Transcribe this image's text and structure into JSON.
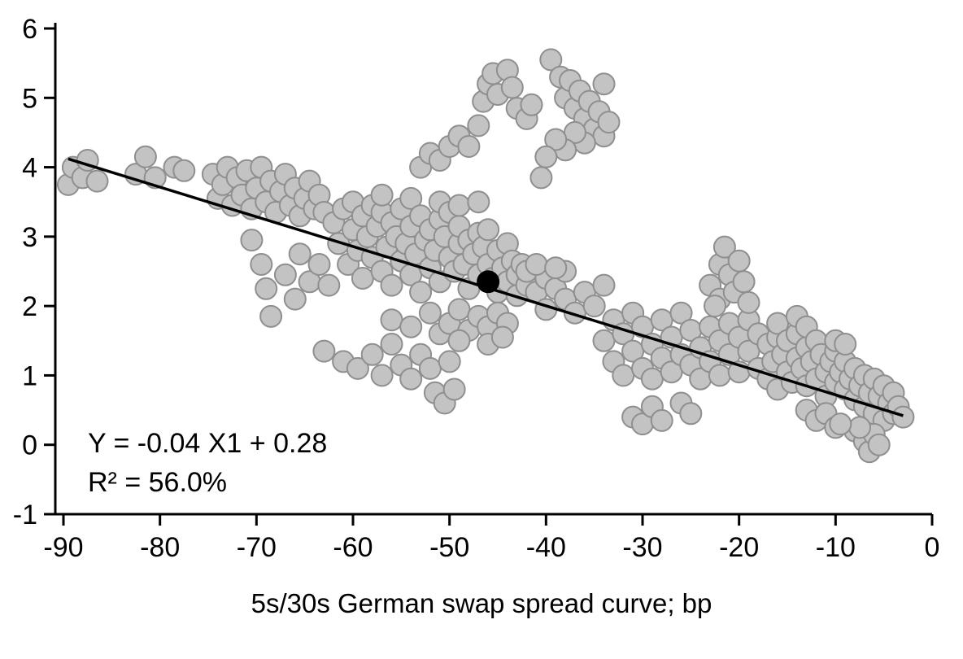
{
  "chart_data": {
    "type": "scatter",
    "title": "",
    "xlabel": "5s/30s German swap spread curve; bp",
    "ylabel": "",
    "xlim": [
      -90,
      0
    ],
    "ylim": [
      -1,
      6
    ],
    "x_ticks": [
      -90,
      -80,
      -70,
      -60,
      -50,
      -40,
      -30,
      -20,
      -10,
      0
    ],
    "y_ticks": [
      6,
      5,
      4,
      3,
      2,
      1,
      0,
      -1
    ],
    "grid": false,
    "legend": "none",
    "annotation": {
      "line1": "Y = -0.04 X1 + 0.28",
      "line2": "R² = 56.0%"
    },
    "regression": {
      "slope": -0.04,
      "intercept": 0.28,
      "r_squared_pct": 56.0,
      "x1": -89.5,
      "y1": 4.12,
      "x2": -3.0,
      "y2": 0.42,
      "color": "#000000"
    },
    "highlight_point": {
      "x": -46,
      "y": 2.35,
      "color": "#000000",
      "radius": 14
    },
    "point_style": {
      "fill": "#c3c3c3",
      "stroke": "#8f8f8f",
      "radius": 13
    },
    "points": [
      [
        -89.5,
        3.75
      ],
      [
        -89,
        4.0
      ],
      [
        -88,
        3.85
      ],
      [
        -87.5,
        4.1
      ],
      [
        -86.5,
        3.8
      ],
      [
        -82.5,
        3.9
      ],
      [
        -81.5,
        4.15
      ],
      [
        -80.5,
        3.85
      ],
      [
        -78.5,
        4.0
      ],
      [
        -77.5,
        3.95
      ],
      [
        -74.5,
        3.9
      ],
      [
        -74,
        3.55
      ],
      [
        -73.5,
        3.75
      ],
      [
        -73,
        4.0
      ],
      [
        -72.5,
        3.45
      ],
      [
        -72,
        3.85
      ],
      [
        -71.5,
        3.6
      ],
      [
        -71,
        3.95
      ],
      [
        -70.5,
        3.4
      ],
      [
        -70,
        3.7
      ],
      [
        -69.5,
        4.0
      ],
      [
        -69,
        3.5
      ],
      [
        -68.5,
        3.8
      ],
      [
        -68,
        3.35
      ],
      [
        -67.5,
        3.65
      ],
      [
        -67,
        3.9
      ],
      [
        -66.5,
        3.45
      ],
      [
        -66,
        3.7
      ],
      [
        -65.5,
        3.3
      ],
      [
        -65,
        3.55
      ],
      [
        -64.5,
        3.8
      ],
      [
        -64,
        3.4
      ],
      [
        -63.5,
        3.6
      ],
      [
        -63,
        3.35
      ],
      [
        -70.5,
        2.95
      ],
      [
        -69.5,
        2.6
      ],
      [
        -69,
        2.25
      ],
      [
        -68.5,
        1.85
      ],
      [
        -67,
        2.45
      ],
      [
        -66,
        2.1
      ],
      [
        -65.5,
        2.75
      ],
      [
        -64.5,
        2.35
      ],
      [
        -63.5,
        2.6
      ],
      [
        -62.5,
        2.3
      ],
      [
        -63,
        1.35
      ],
      [
        -61,
        1.2
      ],
      [
        -59.5,
        1.1
      ],
      [
        -58,
        1.3
      ],
      [
        -57,
        1.0
      ],
      [
        -56,
        1.45
      ],
      [
        -55,
        1.15
      ],
      [
        -54,
        0.95
      ],
      [
        -53,
        1.3
      ],
      [
        -52,
        1.1
      ],
      [
        -51.5,
        0.75
      ],
      [
        -50.5,
        0.6
      ],
      [
        -50,
        1.2
      ],
      [
        -49.5,
        0.8
      ],
      [
        -62,
        3.2
      ],
      [
        -61.5,
        2.9
      ],
      [
        -61,
        3.4
      ],
      [
        -60.5,
        2.6
      ],
      [
        -60,
        3.1
      ],
      [
        -60,
        3.5
      ],
      [
        -59.5,
        2.8
      ],
      [
        -59,
        3.3
      ],
      [
        -59,
        2.4
      ],
      [
        -58.5,
        3.0
      ],
      [
        -58,
        3.45
      ],
      [
        -58,
        2.7
      ],
      [
        -57.5,
        3.15
      ],
      [
        -57,
        2.5
      ],
      [
        -57,
        3.35
      ],
      [
        -57,
        3.6
      ],
      [
        -56.5,
        2.85
      ],
      [
        -56,
        3.2
      ],
      [
        -56,
        2.3
      ],
      [
        -55.5,
        3.0
      ],
      [
        -55,
        2.65
      ],
      [
        -55,
        3.4
      ],
      [
        -54.5,
        2.9
      ],
      [
        -54,
        3.15
      ],
      [
        -54,
        2.45
      ],
      [
        -54,
        3.55
      ],
      [
        -53.5,
        2.75
      ],
      [
        -53,
        3.3
      ],
      [
        -53,
        2.2
      ],
      [
        -52.5,
        2.95
      ],
      [
        -52,
        3.1
      ],
      [
        -52,
        2.55
      ],
      [
        -51.5,
        2.8
      ],
      [
        -51,
        3.25
      ],
      [
        -51,
        2.35
      ],
      [
        -51,
        3.5
      ],
      [
        -50.5,
        3.0
      ],
      [
        -50,
        2.7
      ],
      [
        -50,
        3.35
      ],
      [
        -49.5,
        2.5
      ],
      [
        -49,
        2.9
      ],
      [
        -49,
        3.15
      ],
      [
        -49,
        3.45
      ],
      [
        -48.5,
        2.6
      ],
      [
        -48,
        2.95
      ],
      [
        -48,
        2.25
      ],
      [
        -47.5,
        2.75
      ],
      [
        -47,
        3.05
      ],
      [
        -47,
        2.45
      ],
      [
        -47,
        3.5
      ],
      [
        -46.5,
        2.85
      ],
      [
        -46,
        2.6
      ],
      [
        -46,
        3.1
      ],
      [
        -45.5,
        2.4
      ],
      [
        -45,
        2.8
      ],
      [
        -45,
        2.2
      ],
      [
        -44.5,
        2.55
      ],
      [
        -44,
        2.9
      ],
      [
        -44,
        2.35
      ],
      [
        -43.5,
        2.65
      ],
      [
        -43,
        2.45
      ],
      [
        -43,
        2.15
      ],
      [
        -42.5,
        2.6
      ],
      [
        -42,
        2.3
      ],
      [
        -56,
        1.8
      ],
      [
        -54,
        1.7
      ],
      [
        -52,
        1.9
      ],
      [
        -51,
        1.6
      ],
      [
        -50,
        1.75
      ],
      [
        -49,
        1.95
      ],
      [
        -48,
        1.65
      ],
      [
        -47,
        1.85
      ],
      [
        -46,
        1.7
      ],
      [
        -45,
        1.9
      ],
      [
        -44,
        1.75
      ],
      [
        -49,
        1.5
      ],
      [
        -46,
        1.45
      ],
      [
        -44.5,
        1.55
      ],
      [
        -53,
        4.0
      ],
      [
        -52,
        4.2
      ],
      [
        -51,
        4.1
      ],
      [
        -50,
        4.3
      ],
      [
        -49,
        4.45
      ],
      [
        -48,
        4.3
      ],
      [
        -47,
        4.6
      ],
      [
        -46.5,
        4.95
      ],
      [
        -46,
        5.2
      ],
      [
        -45.5,
        5.35
      ],
      [
        -45,
        5.05
      ],
      [
        -44,
        5.4
      ],
      [
        -43.5,
        5.15
      ],
      [
        -43,
        4.85
      ],
      [
        -42,
        4.7
      ],
      [
        -41.5,
        4.9
      ],
      [
        -39.5,
        5.55
      ],
      [
        -38.5,
        5.3
      ],
      [
        -38,
        5.0
      ],
      [
        -37.5,
        5.25
      ],
      [
        -37,
        4.85
      ],
      [
        -36.5,
        5.1
      ],
      [
        -36,
        4.7
      ],
      [
        -35.5,
        4.95
      ],
      [
        -35,
        4.55
      ],
      [
        -34.5,
        4.8
      ],
      [
        -34,
        4.45
      ],
      [
        -33.5,
        4.65
      ],
      [
        -36,
        4.35
      ],
      [
        -37,
        4.5
      ],
      [
        -38,
        4.25
      ],
      [
        -39,
        4.4
      ],
      [
        -40,
        4.15
      ],
      [
        -34,
        5.2
      ],
      [
        -40.5,
        3.85
      ],
      [
        -42,
        2.5
      ],
      [
        -41,
        2.2
      ],
      [
        -40,
        2.4
      ],
      [
        -40,
        1.95
      ],
      [
        -39,
        2.25
      ],
      [
        -38,
        2.1
      ],
      [
        -38,
        2.5
      ],
      [
        -37,
        1.9
      ],
      [
        -36,
        2.2
      ],
      [
        -35,
        2.0
      ],
      [
        -34,
        2.3
      ],
      [
        -41,
        2.6
      ],
      [
        -39,
        2.55
      ],
      [
        -34,
        1.5
      ],
      [
        -33,
        1.2
      ],
      [
        -33,
        1.8
      ],
      [
        -32,
        1.0
      ],
      [
        -32,
        1.6
      ],
      [
        -31,
        1.35
      ],
      [
        -31,
        1.9
      ],
      [
        -30,
        1.1
      ],
      [
        -30,
        1.7
      ],
      [
        -29,
        1.45
      ],
      [
        -29,
        0.95
      ],
      [
        -28,
        1.25
      ],
      [
        -28,
        1.8
      ],
      [
        -27,
        1.05
      ],
      [
        -27,
        1.55
      ],
      [
        -26,
        1.3
      ],
      [
        -26,
        1.9
      ],
      [
        -25,
        1.15
      ],
      [
        -25,
        1.65
      ],
      [
        -24,
        1.4
      ],
      [
        -24,
        0.95
      ],
      [
        -23,
        1.7
      ],
      [
        -23,
        1.2
      ],
      [
        -22,
        1.5
      ],
      [
        -22,
        1.0
      ],
      [
        -21,
        1.75
      ],
      [
        -21,
        1.3
      ],
      [
        -20,
        1.55
      ],
      [
        -20,
        1.05
      ],
      [
        -19,
        1.8
      ],
      [
        -19,
        1.35
      ],
      [
        -18,
        1.6
      ],
      [
        -18,
        1.1
      ],
      [
        -31,
        0.4
      ],
      [
        -30,
        0.3
      ],
      [
        -29,
        0.55
      ],
      [
        -28,
        0.35
      ],
      [
        -26,
        0.6
      ],
      [
        -25,
        0.45
      ],
      [
        -23,
        2.3
      ],
      [
        -22,
        2.6
      ],
      [
        -22,
        2.1
      ],
      [
        -21.5,
        2.85
      ],
      [
        -21,
        2.45
      ],
      [
        -20.5,
        2.2
      ],
      [
        -20,
        2.65
      ],
      [
        -19.5,
        2.35
      ],
      [
        -19,
        2.05
      ],
      [
        -22.5,
        2.0
      ],
      [
        -17,
        1.45
      ],
      [
        -17,
        0.95
      ],
      [
        -16.5,
        1.2
      ],
      [
        -16,
        1.55
      ],
      [
        -16,
        0.8
      ],
      [
        -16,
        1.75
      ],
      [
        -15.5,
        1.3
      ],
      [
        -15,
        1.05
      ],
      [
        -15,
        1.5
      ],
      [
        -14.5,
        0.9
      ],
      [
        -14,
        1.25
      ],
      [
        -14,
        1.6
      ],
      [
        -14,
        1.85
      ],
      [
        -13.5,
        1.1
      ],
      [
        -13,
        1.4
      ],
      [
        -13,
        0.85
      ],
      [
        -13,
        1.7
      ],
      [
        -12.5,
        1.2
      ],
      [
        -12,
        1.5
      ],
      [
        -12,
        0.95
      ],
      [
        -11.5,
        1.3
      ],
      [
        -11,
        1.05
      ],
      [
        -11,
        0.7
      ],
      [
        -10.5,
        1.2
      ],
      [
        -10,
        0.9
      ],
      [
        -10,
        1.35
      ],
      [
        -10,
        1.5
      ],
      [
        -9.5,
        1.05
      ],
      [
        -9,
        0.8
      ],
      [
        -9,
        1.2
      ],
      [
        -9,
        1.45
      ],
      [
        -8.5,
        0.95
      ],
      [
        -8,
        1.1
      ],
      [
        -8,
        0.65
      ],
      [
        -7.5,
        0.85
      ],
      [
        -7,
        1.0
      ],
      [
        -7,
        0.55
      ],
      [
        -6.5,
        0.75
      ],
      [
        -6,
        0.95
      ],
      [
        -6,
        0.45
      ],
      [
        -5.5,
        0.7
      ],
      [
        -5,
        0.85
      ],
      [
        -5,
        0.35
      ],
      [
        -4.5,
        0.6
      ],
      [
        -4,
        0.75
      ],
      [
        -4,
        0.45
      ],
      [
        -3.5,
        0.55
      ],
      [
        -3,
        0.4
      ],
      [
        -8,
        0.2
      ],
      [
        -7,
        0.05
      ],
      [
        -6.5,
        -0.1
      ],
      [
        -6,
        0.15
      ],
      [
        -5.5,
        0.0
      ],
      [
        -7.5,
        0.25
      ],
      [
        -13,
        0.5
      ],
      [
        -12,
        0.35
      ],
      [
        -11,
        0.45
      ],
      [
        -10,
        0.25
      ],
      [
        -9.5,
        0.3
      ]
    ]
  }
}
